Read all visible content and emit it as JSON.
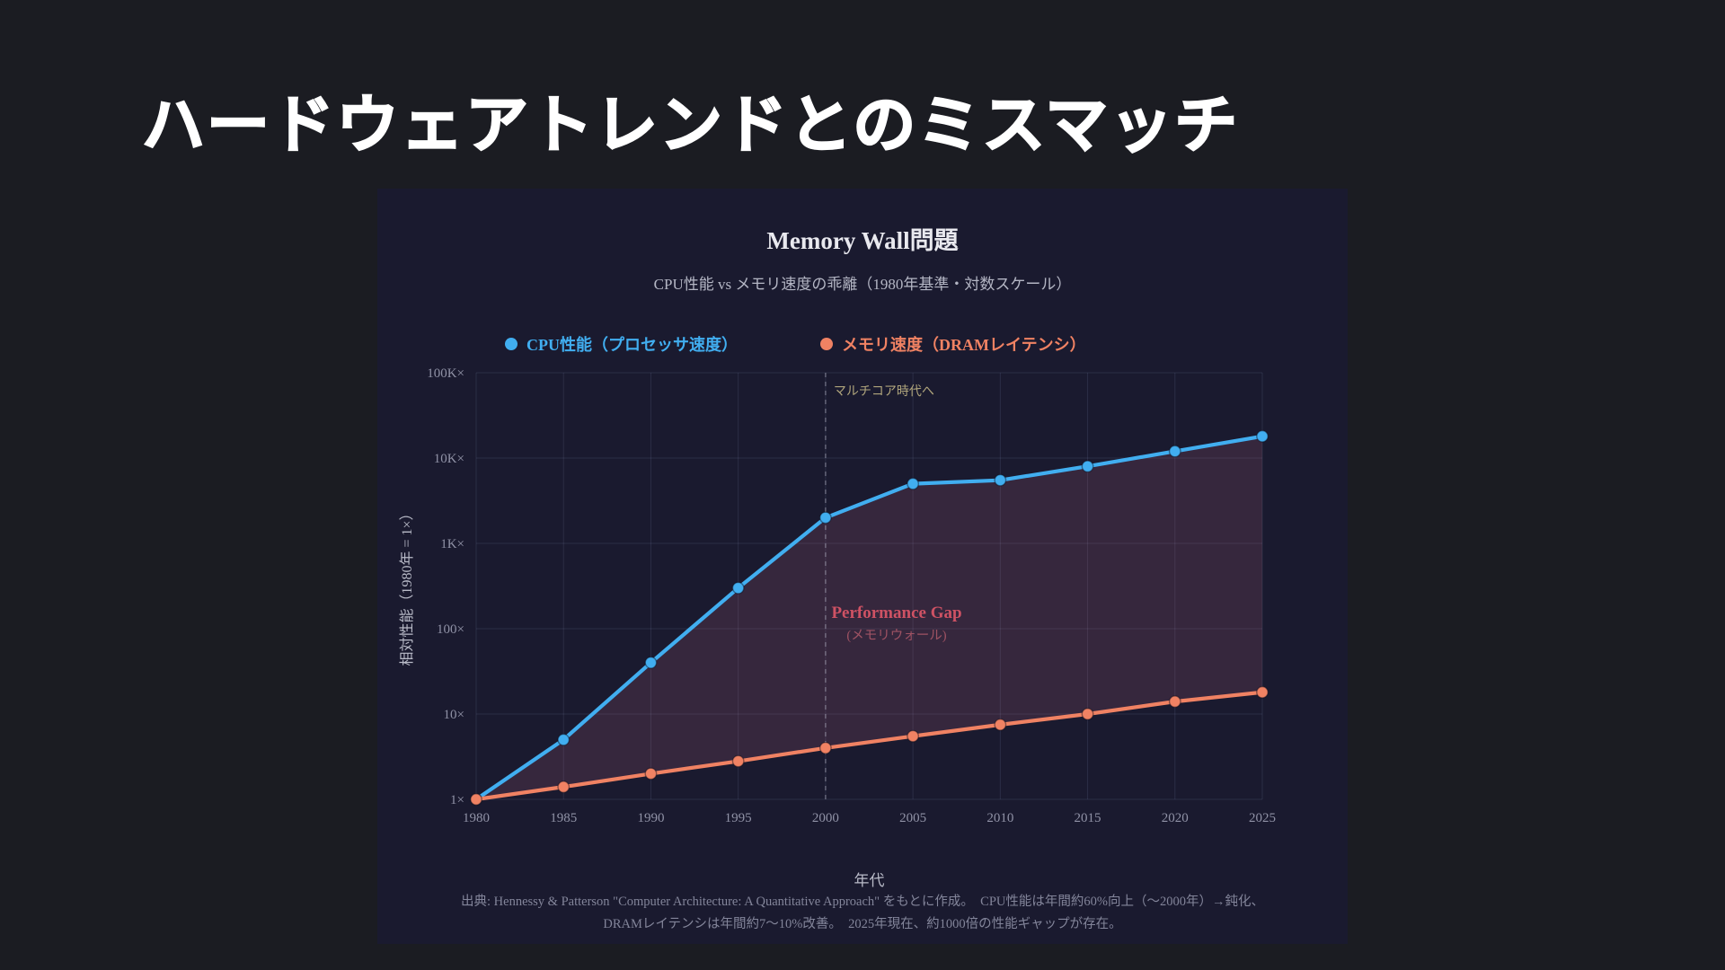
{
  "slide": {
    "title": "ハードウェアトレンドとのミスマッチ"
  },
  "chart": {
    "title": "Memory Wall問題",
    "subtitle": "CPU性能 vs メモリ速度の乖離（1980年基準・対数スケール）",
    "xlabel": "年代",
    "ylabel": "相対性能（1980年 = 1×）",
    "footer_line1": "出典: Hennessy & Patterson \"Computer Architecture: A Quantitative Approach\" をもとに作成。　CPU性能は年間約60%向上（〜2000年）→鈍化、",
    "footer_line2": "DRAMレイテンシは年間約7〜10%改善。　2025年現在、約1000倍の性能ギャップが存在。"
  },
  "colors": {
    "slide_bg": "#1b1c22",
    "panel_bg": "#1a1a2f",
    "cpu": "#41aef0",
    "memory": "#f08263",
    "grid": "rgba(165,175,225,0.13)",
    "tick_label": "#9092a6",
    "gap_fill": "rgba(225,120,150,0.14)",
    "vline": "rgba(200,200,214,0.45)"
  },
  "chart_data": {
    "type": "line",
    "yscale": "log",
    "ylim": [
      1,
      100000
    ],
    "x": [
      1980,
      1985,
      1990,
      1995,
      2000,
      2005,
      2010,
      2015,
      2020,
      2025
    ],
    "x_tick_labels": [
      "1980",
      "1985",
      "1990",
      "1995",
      "2000",
      "2005",
      "2010",
      "2015",
      "2020",
      "2025"
    ],
    "y_tick_labels": [
      "1×",
      "10×",
      "100×",
      "1K×",
      "10K×",
      "100K×"
    ],
    "series": [
      {
        "name": "CPU性能（プロセッサ速度）",
        "color": "#41aef0",
        "values": [
          1,
          5,
          40,
          300,
          2000,
          5000,
          5500,
          8000,
          12000,
          18000
        ]
      },
      {
        "name": "メモリ速度（DRAMレイテンシ）",
        "color": "#f08263",
        "values": [
          1,
          1.4,
          2,
          2.8,
          4,
          5.5,
          7.5,
          10,
          14,
          18
        ]
      }
    ],
    "gap_fill_between_series": true,
    "vline": {
      "x": 2000,
      "style": "dashed"
    },
    "annotations": [
      {
        "id": "multicore",
        "text": "マルチコア時代へ",
        "at_year": 2000,
        "color": "#b0a57c"
      },
      {
        "id": "gap_title",
        "text": "Performance Gap",
        "color": "#cf5264"
      },
      {
        "id": "gap_sub",
        "text": "(メモリウォール)",
        "color": "#b25a6a"
      }
    ],
    "title": "Memory Wall問題",
    "xlabel": "年代",
    "ylabel": "相対性能（1980年 = 1×）",
    "legend_position": "top"
  }
}
